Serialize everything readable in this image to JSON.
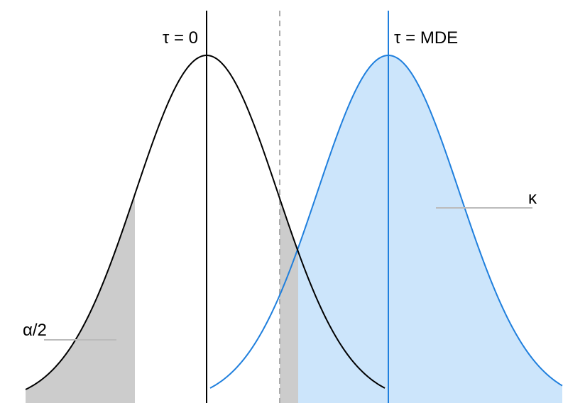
{
  "labels": {
    "null_center": "τ = 0",
    "alt_center": "τ = MDE",
    "power": "κ",
    "alpha_half": "α/2"
  },
  "colors": {
    "null_curve": "#000000",
    "alt_curve": "#1f7fdd",
    "alt_fill": "#cce5fb",
    "tail_fill": "#cccccc",
    "threshold_line": "#aaaaaa",
    "leader_line": "#bbbbbb"
  }
}
